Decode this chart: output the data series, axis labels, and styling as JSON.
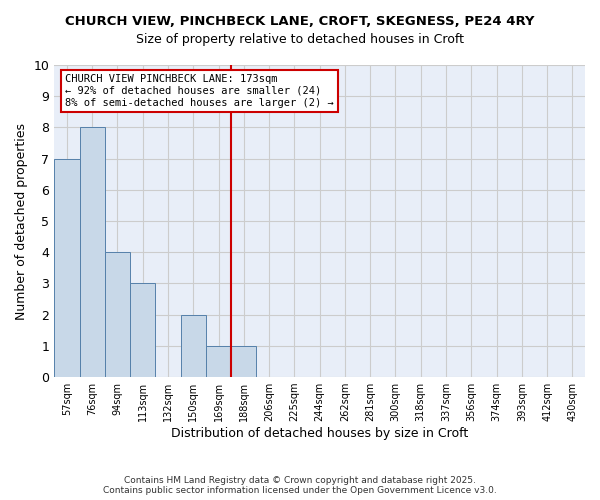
{
  "title_line1": "CHURCH VIEW, PINCHBECK LANE, CROFT, SKEGNESS, PE24 4RY",
  "title_line2": "Size of property relative to detached houses in Croft",
  "xlabel": "Distribution of detached houses by size in Croft",
  "ylabel": "Number of detached properties",
  "footnote": "Contains HM Land Registry data © Crown copyright and database right 2025.\nContains public sector information licensed under the Open Government Licence v3.0.",
  "bins": [
    "57sqm",
    "76sqm",
    "94sqm",
    "113sqm",
    "132sqm",
    "150sqm",
    "169sqm",
    "188sqm",
    "206sqm",
    "225sqm",
    "244sqm",
    "262sqm",
    "281sqm",
    "300sqm",
    "318sqm",
    "337sqm",
    "356sqm",
    "374sqm",
    "393sqm",
    "412sqm",
    "430sqm"
  ],
  "values": [
    7,
    8,
    4,
    3,
    0,
    2,
    1,
    1,
    0,
    0,
    0,
    0,
    0,
    0,
    0,
    0,
    0,
    0,
    0,
    0,
    0
  ],
  "bar_color": "#c8d8e8",
  "bar_edge_color": "#5580aa",
  "grid_color": "#cccccc",
  "bg_color": "#e8eef8",
  "vline_color": "#cc0000",
  "annotation_text": "CHURCH VIEW PINCHBECK LANE: 173sqm\n← 92% of detached houses are smaller (24)\n8% of semi-detached houses are larger (2) →",
  "annotation_box_color": "#cc0000",
  "ylim": [
    0,
    10
  ],
  "yticks": [
    0,
    1,
    2,
    3,
    4,
    5,
    6,
    7,
    8,
    9,
    10
  ]
}
